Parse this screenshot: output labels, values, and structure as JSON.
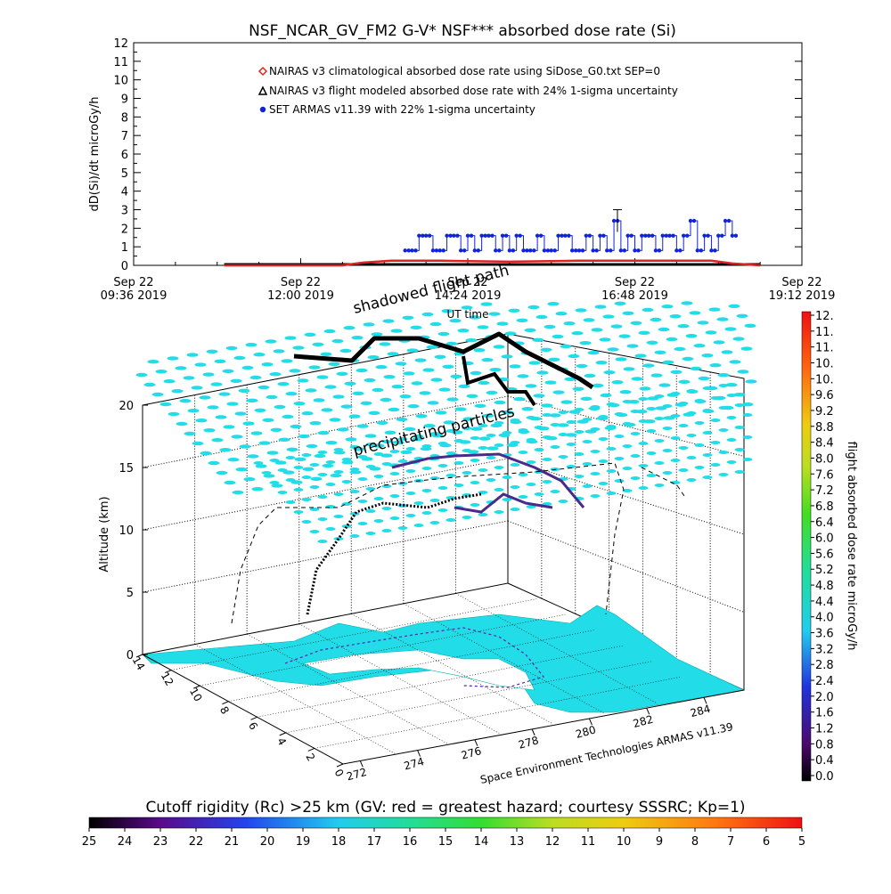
{
  "chart_data": {
    "type": "line",
    "title": "NSF_NCAR_GV_FM2 G-V* NSF*** absorbed dose rate (Si)",
    "ylabel": "dD(Si)/dt microGy/h",
    "ylim": [
      0,
      12
    ],
    "y_ticks": [
      "0",
      "1",
      "2",
      "3",
      "4",
      "5",
      "6",
      "7",
      "8",
      "9",
      "10",
      "11",
      "12"
    ],
    "x_ticks": [
      {
        "line1": "Sep 22",
        "line2": "09:36 2019"
      },
      {
        "line1": "Sep 22",
        "line2": "12:00 2019"
      },
      {
        "line1": "Sep 22",
        "line2": "14:24 2019"
      },
      {
        "line1": "Sep 22",
        "line2": "16:48 2019"
      },
      {
        "line1": "Sep 22",
        "line2": "19:12 2019"
      }
    ],
    "xlabel": "UT time",
    "xlim_hours": [
      9.6,
      19.2
    ],
    "legend": [
      {
        "label": "NAIRAS v3 climatological absorbed dose rate using SiDose_G0.txt SEP=0",
        "color": "#dd2222",
        "marker": "diamond"
      },
      {
        "label": "NAIRAS v3 flight modeled absorbed dose rate with 24% 1-sigma uncertainty",
        "color": "#000000",
        "marker": "triangle"
      },
      {
        "label": "SET ARMAS v11.39 with 22% 1-sigma uncertainty",
        "color": "#1122dd",
        "marker": "circle"
      }
    ],
    "series": [
      {
        "name": "NAIRAS v3 climatological absorbed dose rate using SiDose_G0.txt SEP=0",
        "x_hours": [
          10.9,
          12.6,
          12.9,
          13.3,
          14.0,
          15.0,
          16.0,
          16.8,
          17.5,
          17.9,
          18.2,
          18.6
        ],
        "values": [
          0.0,
          0.0,
          0.15,
          0.25,
          0.25,
          0.2,
          0.25,
          0.25,
          0.25,
          0.25,
          0.1,
          0.0
        ]
      },
      {
        "name": "NAIRAS v3 flight modeled absorbed dose rate with 24% 1-sigma uncertainty",
        "x_hours": [
          10.9,
          12.0,
          13.0,
          14.0,
          15.0,
          16.0,
          17.0,
          18.0,
          18.6
        ],
        "values": [
          0.0,
          0.0,
          0.0,
          0.0,
          0.0,
          0.0,
          0.0,
          0.0,
          0.0
        ]
      },
      {
        "name": "SET ARMAS v11.39 with 22% 1-sigma uncertainty",
        "x_hours": [
          13.5,
          13.6,
          13.7,
          13.8,
          13.9,
          14.0,
          14.1,
          14.2,
          14.3,
          14.4,
          14.5,
          14.6,
          14.7,
          14.8,
          14.9,
          15.0,
          15.1,
          15.2,
          15.3,
          15.4,
          15.5,
          15.6,
          15.7,
          15.8,
          15.9,
          16.0,
          16.1,
          16.2,
          16.3,
          16.4,
          16.5,
          16.6,
          16.7,
          16.8,
          16.9,
          17.0,
          17.1,
          17.2,
          17.3,
          17.4,
          17.5,
          17.6,
          17.7,
          17.8,
          17.9,
          18.0,
          18.1,
          18.2
        ],
        "values": [
          0.8,
          0.8,
          1.6,
          1.6,
          0.8,
          0.8,
          1.6,
          1.6,
          0.8,
          1.6,
          0.8,
          1.6,
          1.6,
          0.8,
          1.6,
          0.8,
          1.6,
          0.8,
          0.8,
          1.6,
          0.8,
          0.8,
          1.6,
          1.6,
          0.8,
          0.8,
          1.6,
          0.8,
          1.6,
          0.8,
          2.4,
          0.8,
          1.6,
          0.8,
          1.6,
          1.6,
          0.8,
          1.6,
          1.6,
          0.8,
          1.6,
          2.4,
          0.8,
          1.6,
          0.8,
          1.6,
          2.4,
          1.6
        ]
      }
    ],
    "error_bar": {
      "x_hours": 16.55,
      "value": 2.4,
      "low": 1.8,
      "high": 3.0
    },
    "panel3d": {
      "zlabel": "Altitude (km)",
      "z_ticks": [
        "0",
        "5",
        "10",
        "15",
        "20"
      ],
      "lon_ticks": [
        "272",
        "274",
        "276",
        "278",
        "280",
        "282",
        "284"
      ],
      "lat_ticks": [
        "14",
        "12",
        "10",
        "8",
        "6",
        "4",
        "2",
        "0"
      ],
      "annotations": [
        "shadowed flight path",
        "precipitating particles"
      ],
      "credit": "Space Environment Technologies ARMAS v11.39"
    },
    "colorbar_right": {
      "label": "flight absorbed dose rate microGy/h",
      "ticks": [
        "12.",
        "11.",
        "11.",
        "10.",
        "10.",
        "9.6",
        "9.2",
        "8.8",
        "8.4",
        "8.0",
        "7.6",
        "7.2",
        "6.8",
        "6.4",
        "6.0",
        "5.6",
        "5.2",
        "4.8",
        "4.4",
        "4.0",
        "3.6",
        "3.2",
        "2.8",
        "2.4",
        "2.0",
        "1.6",
        "1.2",
        "0.8",
        "0.4",
        "0.0"
      ]
    },
    "colorbar_bottom": {
      "label": "Cutoff rigidity (Rc) >25 km (GV: red = greatest hazard; courtesy SSSRC; Kp=1)",
      "ticks": [
        "25",
        "24",
        "23",
        "22",
        "21",
        "20",
        "19",
        "18",
        "17",
        "16",
        "15",
        "14",
        "13",
        "12",
        "11",
        "10",
        "9",
        "8",
        "7",
        "6",
        "5"
      ]
    },
    "colors": {
      "ground_cyan": "#22dde8",
      "climatological": "#dd2222",
      "armas": "#1122dd",
      "flight_path": "#000000"
    }
  }
}
